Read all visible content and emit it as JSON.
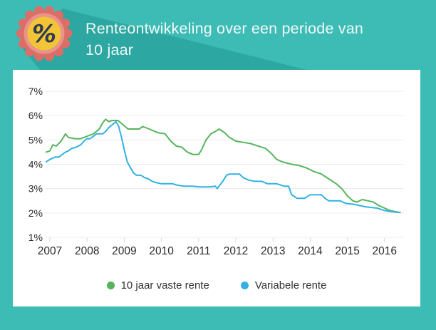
{
  "header": {
    "title_line1": "Renteontwikkeling over een periode van",
    "title_line2": "10 jaar",
    "badge_symbol": "%",
    "colors": {
      "background": "#3dbcb6",
      "long_shadow": "#2da7a1",
      "badge_outer": "#db6e67",
      "badge_inner": "#e9938b",
      "badge_circle": "#f2c537",
      "badge_symbol_color": "#303c4e",
      "title_color": "#f2f8f8"
    }
  },
  "chart_data": {
    "type": "line",
    "title": "Renteontwikkeling over een periode van 10 jaar",
    "xlabel": "",
    "ylabel": "",
    "grid": true,
    "legend_position": "bottom",
    "ylim": [
      1,
      7
    ],
    "xlim": [
      2006.9,
      2016.6
    ],
    "y_ticks": [
      {
        "value": 7,
        "label": "7%"
      },
      {
        "value": 6,
        "label": "6%"
      },
      {
        "value": 5,
        "label": "5%"
      },
      {
        "value": 4,
        "label": "4%"
      },
      {
        "value": 3,
        "label": "3%"
      },
      {
        "value": 2,
        "label": "2%"
      },
      {
        "value": 1,
        "label": "1%"
      }
    ],
    "x_ticks": [
      {
        "value": 2007,
        "label": "2007"
      },
      {
        "value": 2008,
        "label": "2008"
      },
      {
        "value": 2009,
        "label": "2009"
      },
      {
        "value": 2010,
        "label": "2010"
      },
      {
        "value": 2011,
        "label": "2011"
      },
      {
        "value": 2012,
        "label": "2012"
      },
      {
        "value": 2013,
        "label": "2013"
      },
      {
        "value": 2014,
        "label": "2014"
      },
      {
        "value": 2015,
        "label": "2015"
      },
      {
        "value": 2016,
        "label": "2016"
      }
    ],
    "grid_color": "#ececec",
    "tick_color": "#d9d9d9",
    "axis_text_color": "#2b2b2b",
    "series": [
      {
        "name": "10 jaar vaste rente",
        "color": "#56b45c",
        "points": [
          [
            2006.9,
            4.5
          ],
          [
            2007.0,
            4.55
          ],
          [
            2007.08,
            4.8
          ],
          [
            2007.17,
            4.75
          ],
          [
            2007.3,
            4.95
          ],
          [
            2007.42,
            5.25
          ],
          [
            2007.5,
            5.1
          ],
          [
            2007.67,
            5.05
          ],
          [
            2007.83,
            5.05
          ],
          [
            2008.0,
            5.15
          ],
          [
            2008.17,
            5.25
          ],
          [
            2008.33,
            5.45
          ],
          [
            2008.42,
            5.7
          ],
          [
            2008.5,
            5.85
          ],
          [
            2008.58,
            5.75
          ],
          [
            2008.67,
            5.8
          ],
          [
            2008.83,
            5.8
          ],
          [
            2008.95,
            5.65
          ],
          [
            2009.1,
            5.45
          ],
          [
            2009.25,
            5.45
          ],
          [
            2009.4,
            5.45
          ],
          [
            2009.5,
            5.55
          ],
          [
            2009.67,
            5.45
          ],
          [
            2009.9,
            5.3
          ],
          [
            2010.1,
            5.25
          ],
          [
            2010.25,
            4.95
          ],
          [
            2010.4,
            4.75
          ],
          [
            2010.55,
            4.7
          ],
          [
            2010.7,
            4.5
          ],
          [
            2010.85,
            4.4
          ],
          [
            2011.0,
            4.4
          ],
          [
            2011.08,
            4.6
          ],
          [
            2011.2,
            5.0
          ],
          [
            2011.33,
            5.25
          ],
          [
            2011.45,
            5.35
          ],
          [
            2011.55,
            5.45
          ],
          [
            2011.7,
            5.3
          ],
          [
            2011.83,
            5.1
          ],
          [
            2012.0,
            4.95
          ],
          [
            2012.2,
            4.9
          ],
          [
            2012.4,
            4.85
          ],
          [
            2012.6,
            4.75
          ],
          [
            2012.8,
            4.65
          ],
          [
            2012.95,
            4.45
          ],
          [
            2013.1,
            4.2
          ],
          [
            2013.25,
            4.1
          ],
          [
            2013.5,
            4.0
          ],
          [
            2013.7,
            3.95
          ],
          [
            2013.9,
            3.85
          ],
          [
            2014.1,
            3.7
          ],
          [
            2014.3,
            3.6
          ],
          [
            2014.5,
            3.4
          ],
          [
            2014.7,
            3.2
          ],
          [
            2014.85,
            3.0
          ],
          [
            2015.0,
            2.7
          ],
          [
            2015.15,
            2.5
          ],
          [
            2015.25,
            2.45
          ],
          [
            2015.4,
            2.55
          ],
          [
            2015.55,
            2.5
          ],
          [
            2015.7,
            2.45
          ],
          [
            2015.85,
            2.3
          ],
          [
            2016.0,
            2.2
          ],
          [
            2016.15,
            2.1
          ],
          [
            2016.3,
            2.05
          ],
          [
            2016.42,
            2.02
          ]
        ]
      },
      {
        "name": "Variabele rente",
        "color": "#33b1e1",
        "points": [
          [
            2006.9,
            4.1
          ],
          [
            2007.0,
            4.2
          ],
          [
            2007.15,
            4.3
          ],
          [
            2007.25,
            4.3
          ],
          [
            2007.33,
            4.4
          ],
          [
            2007.42,
            4.5
          ],
          [
            2007.5,
            4.55
          ],
          [
            2007.58,
            4.65
          ],
          [
            2007.7,
            4.7
          ],
          [
            2007.83,
            4.8
          ],
          [
            2007.92,
            4.95
          ],
          [
            2008.0,
            5.05
          ],
          [
            2008.08,
            5.05
          ],
          [
            2008.17,
            5.15
          ],
          [
            2008.25,
            5.25
          ],
          [
            2008.42,
            5.25
          ],
          [
            2008.5,
            5.35
          ],
          [
            2008.58,
            5.5
          ],
          [
            2008.7,
            5.65
          ],
          [
            2008.78,
            5.75
          ],
          [
            2008.85,
            5.55
          ],
          [
            2008.92,
            5.15
          ],
          [
            2009.0,
            4.6
          ],
          [
            2009.08,
            4.1
          ],
          [
            2009.17,
            3.85
          ],
          [
            2009.25,
            3.65
          ],
          [
            2009.33,
            3.55
          ],
          [
            2009.45,
            3.55
          ],
          [
            2009.55,
            3.45
          ],
          [
            2009.65,
            3.4
          ],
          [
            2009.75,
            3.3
          ],
          [
            2009.85,
            3.25
          ],
          [
            2010.0,
            3.2
          ],
          [
            2010.3,
            3.2
          ],
          [
            2010.4,
            3.15
          ],
          [
            2010.6,
            3.1
          ],
          [
            2010.85,
            3.1
          ],
          [
            2011.0,
            3.07
          ],
          [
            2011.3,
            3.07
          ],
          [
            2011.45,
            3.1
          ],
          [
            2011.5,
            3.0
          ],
          [
            2011.55,
            3.1
          ],
          [
            2011.65,
            3.3
          ],
          [
            2011.75,
            3.55
          ],
          [
            2011.83,
            3.6
          ],
          [
            2012.1,
            3.6
          ],
          [
            2012.2,
            3.45
          ],
          [
            2012.35,
            3.35
          ],
          [
            2012.5,
            3.3
          ],
          [
            2012.7,
            3.3
          ],
          [
            2012.85,
            3.2
          ],
          [
            2013.1,
            3.2
          ],
          [
            2013.3,
            3.1
          ],
          [
            2013.42,
            3.1
          ],
          [
            2013.5,
            2.75
          ],
          [
            2013.65,
            2.6
          ],
          [
            2013.85,
            2.6
          ],
          [
            2014.0,
            2.75
          ],
          [
            2014.3,
            2.75
          ],
          [
            2014.4,
            2.6
          ],
          [
            2014.5,
            2.5
          ],
          [
            2014.8,
            2.5
          ],
          [
            2014.95,
            2.4
          ],
          [
            2015.2,
            2.35
          ],
          [
            2015.5,
            2.25
          ],
          [
            2015.8,
            2.2
          ],
          [
            2016.0,
            2.1
          ],
          [
            2016.2,
            2.05
          ],
          [
            2016.42,
            2.02
          ]
        ]
      }
    ]
  }
}
